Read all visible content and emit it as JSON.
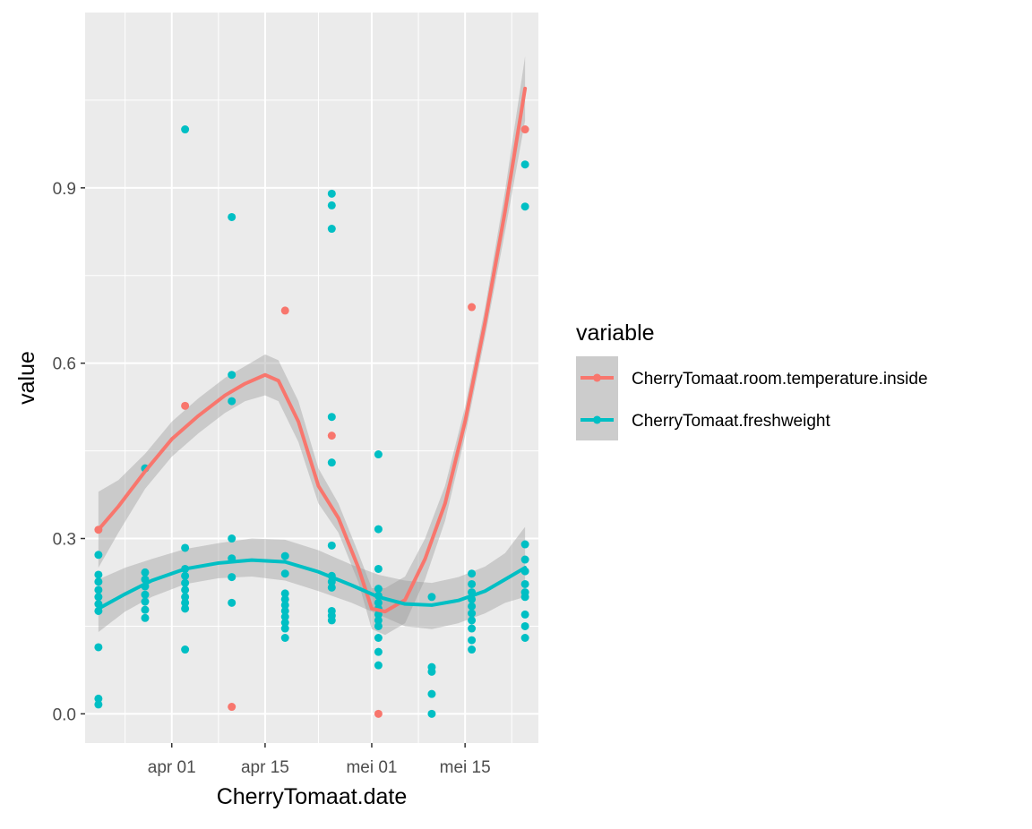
{
  "chart_data": {
    "type": "scatter",
    "xlabel": "CherryTomaat.date",
    "ylabel": "value",
    "xlim": [
      "2024-03-19",
      "2024-05-26"
    ],
    "ylim": [
      -0.05,
      1.2
    ],
    "x_ticks": [
      {
        "value": "2024-04-01",
        "label": "apr 01"
      },
      {
        "value": "2024-04-15",
        "label": "apr 15"
      },
      {
        "value": "2024-05-01",
        "label": "mei 01"
      },
      {
        "value": "2024-05-15",
        "label": "mei 15"
      }
    ],
    "y_ticks": [
      {
        "value": 0.0,
        "label": "0.0"
      },
      {
        "value": 0.3,
        "label": "0.3"
      },
      {
        "value": 0.6,
        "label": "0.6"
      },
      {
        "value": 0.9,
        "label": "0.9"
      }
    ],
    "grid": true,
    "legend": {
      "title": "variable",
      "placement": "right",
      "entries": [
        "CherryTomaat.room.temperature.inside",
        "CherryTomaat.freshweight"
      ]
    },
    "series": [
      {
        "name": "CherryTomaat.room.temperature.inside",
        "color": "#F8766D",
        "points": [
          {
            "x": "2024-03-21",
            "y": 0.315
          },
          {
            "x": "2024-03-28",
            "y": 0.42
          },
          {
            "x": "2024-04-03",
            "y": 0.527
          },
          {
            "x": "2024-04-10",
            "y": 0.012
          },
          {
            "x": "2024-04-18",
            "y": 0.69
          },
          {
            "x": "2024-04-25",
            "y": 0.476
          },
          {
            "x": "2024-05-02",
            "y": 0.0
          },
          {
            "x": "2024-05-16",
            "y": 0.696
          },
          {
            "x": "2024-05-24",
            "y": 1.0
          }
        ],
        "smooth": [
          {
            "x": "2024-03-21",
            "y": 0.315
          },
          {
            "x": "2024-03-24",
            "y": 0.355
          },
          {
            "x": "2024-03-28",
            "y": 0.415
          },
          {
            "x": "2024-04-01",
            "y": 0.47
          },
          {
            "x": "2024-04-05",
            "y": 0.51
          },
          {
            "x": "2024-04-09",
            "y": 0.545
          },
          {
            "x": "2024-04-12",
            "y": 0.565
          },
          {
            "x": "2024-04-15",
            "y": 0.58
          },
          {
            "x": "2024-04-17",
            "y": 0.57
          },
          {
            "x": "2024-04-20",
            "y": 0.5
          },
          {
            "x": "2024-04-23",
            "y": 0.39
          },
          {
            "x": "2024-04-26",
            "y": 0.335
          },
          {
            "x": "2024-04-29",
            "y": 0.25
          },
          {
            "x": "2024-05-01",
            "y": 0.18
          },
          {
            "x": "2024-05-03",
            "y": 0.175
          },
          {
            "x": "2024-05-06",
            "y": 0.195
          },
          {
            "x": "2024-05-09",
            "y": 0.265
          },
          {
            "x": "2024-05-12",
            "y": 0.36
          },
          {
            "x": "2024-05-15",
            "y": 0.5
          },
          {
            "x": "2024-05-18",
            "y": 0.67
          },
          {
            "x": "2024-05-21",
            "y": 0.86
          },
          {
            "x": "2024-05-24",
            "y": 1.07
          }
        ],
        "ci_lower": [
          0.25,
          0.31,
          0.385,
          0.44,
          0.48,
          0.515,
          0.535,
          0.545,
          0.535,
          0.465,
          0.36,
          0.31,
          0.225,
          0.145,
          0.135,
          0.155,
          0.23,
          0.33,
          0.475,
          0.645,
          0.825,
          1.015
        ],
        "ci_upper": [
          0.38,
          0.4,
          0.445,
          0.5,
          0.54,
          0.575,
          0.595,
          0.615,
          0.605,
          0.535,
          0.42,
          0.36,
          0.275,
          0.215,
          0.215,
          0.235,
          0.3,
          0.39,
          0.525,
          0.695,
          0.895,
          1.125
        ]
      },
      {
        "name": "CherryTomaat.freshweight",
        "color": "#00BFC4",
        "points": [
          {
            "x": "2024-03-21",
            "y": 0.272
          },
          {
            "x": "2024-03-21",
            "y": 0.238
          },
          {
            "x": "2024-03-21",
            "y": 0.226
          },
          {
            "x": "2024-03-21",
            "y": 0.212
          },
          {
            "x": "2024-03-21",
            "y": 0.2
          },
          {
            "x": "2024-03-21",
            "y": 0.188
          },
          {
            "x": "2024-03-21",
            "y": 0.176
          },
          {
            "x": "2024-03-21",
            "y": 0.114
          },
          {
            "x": "2024-03-21",
            "y": 0.026
          },
          {
            "x": "2024-03-21",
            "y": 0.016
          },
          {
            "x": "2024-03-28",
            "y": 0.242
          },
          {
            "x": "2024-03-28",
            "y": 0.23
          },
          {
            "x": "2024-03-28",
            "y": 0.218
          },
          {
            "x": "2024-03-28",
            "y": 0.204
          },
          {
            "x": "2024-03-28",
            "y": 0.192
          },
          {
            "x": "2024-03-28",
            "y": 0.178
          },
          {
            "x": "2024-03-28",
            "y": 0.164
          },
          {
            "x": "2024-03-28",
            "y": 0.42
          },
          {
            "x": "2024-04-03",
            "y": 1.0
          },
          {
            "x": "2024-04-03",
            "y": 0.284
          },
          {
            "x": "2024-04-03",
            "y": 0.248
          },
          {
            "x": "2024-04-03",
            "y": 0.236
          },
          {
            "x": "2024-04-03",
            "y": 0.224
          },
          {
            "x": "2024-04-03",
            "y": 0.212
          },
          {
            "x": "2024-04-03",
            "y": 0.2
          },
          {
            "x": "2024-04-03",
            "y": 0.19
          },
          {
            "x": "2024-04-03",
            "y": 0.18
          },
          {
            "x": "2024-04-03",
            "y": 0.11
          },
          {
            "x": "2024-04-10",
            "y": 0.85
          },
          {
            "x": "2024-04-10",
            "y": 0.58
          },
          {
            "x": "2024-04-10",
            "y": 0.535
          },
          {
            "x": "2024-04-10",
            "y": 0.3
          },
          {
            "x": "2024-04-10",
            "y": 0.266
          },
          {
            "x": "2024-04-10",
            "y": 0.234
          },
          {
            "x": "2024-04-10",
            "y": 0.19
          },
          {
            "x": "2024-04-18",
            "y": 0.27
          },
          {
            "x": "2024-04-18",
            "y": 0.24
          },
          {
            "x": "2024-04-18",
            "y": 0.206
          },
          {
            "x": "2024-04-18",
            "y": 0.196
          },
          {
            "x": "2024-04-18",
            "y": 0.186
          },
          {
            "x": "2024-04-18",
            "y": 0.176
          },
          {
            "x": "2024-04-18",
            "y": 0.166
          },
          {
            "x": "2024-04-18",
            "y": 0.156
          },
          {
            "x": "2024-04-18",
            "y": 0.146
          },
          {
            "x": "2024-04-18",
            "y": 0.13
          },
          {
            "x": "2024-04-25",
            "y": 0.89
          },
          {
            "x": "2024-04-25",
            "y": 0.87
          },
          {
            "x": "2024-04-25",
            "y": 0.83
          },
          {
            "x": "2024-04-25",
            "y": 0.508
          },
          {
            "x": "2024-04-25",
            "y": 0.43
          },
          {
            "x": "2024-04-25",
            "y": 0.288
          },
          {
            "x": "2024-04-25",
            "y": 0.236
          },
          {
            "x": "2024-04-25",
            "y": 0.226
          },
          {
            "x": "2024-04-25",
            "y": 0.216
          },
          {
            "x": "2024-04-25",
            "y": 0.176
          },
          {
            "x": "2024-04-25",
            "y": 0.168
          },
          {
            "x": "2024-04-25",
            "y": 0.16
          },
          {
            "x": "2024-05-02",
            "y": 0.444
          },
          {
            "x": "2024-05-02",
            "y": 0.316
          },
          {
            "x": "2024-05-02",
            "y": 0.248
          },
          {
            "x": "2024-05-02",
            "y": 0.214
          },
          {
            "x": "2024-05-02",
            "y": 0.202
          },
          {
            "x": "2024-05-02",
            "y": 0.19
          },
          {
            "x": "2024-05-02",
            "y": 0.18
          },
          {
            "x": "2024-05-02",
            "y": 0.17
          },
          {
            "x": "2024-05-02",
            "y": 0.16
          },
          {
            "x": "2024-05-02",
            "y": 0.15
          },
          {
            "x": "2024-05-02",
            "y": 0.13
          },
          {
            "x": "2024-05-02",
            "y": 0.106
          },
          {
            "x": "2024-05-02",
            "y": 0.083
          },
          {
            "x": "2024-05-10",
            "y": 0.2
          },
          {
            "x": "2024-05-10",
            "y": 0.08
          },
          {
            "x": "2024-05-10",
            "y": 0.072
          },
          {
            "x": "2024-05-10",
            "y": 0.034
          },
          {
            "x": "2024-05-10",
            "y": 0.0
          },
          {
            "x": "2024-05-16",
            "y": 0.24
          },
          {
            "x": "2024-05-16",
            "y": 0.222
          },
          {
            "x": "2024-05-16",
            "y": 0.208
          },
          {
            "x": "2024-05-16",
            "y": 0.196
          },
          {
            "x": "2024-05-16",
            "y": 0.184
          },
          {
            "x": "2024-05-16",
            "y": 0.172
          },
          {
            "x": "2024-05-16",
            "y": 0.16
          },
          {
            "x": "2024-05-16",
            "y": 0.146
          },
          {
            "x": "2024-05-16",
            "y": 0.126
          },
          {
            "x": "2024-05-16",
            "y": 0.11
          },
          {
            "x": "2024-05-24",
            "y": 0.94
          },
          {
            "x": "2024-05-24",
            "y": 0.868
          },
          {
            "x": "2024-05-24",
            "y": 0.29
          },
          {
            "x": "2024-05-24",
            "y": 0.264
          },
          {
            "x": "2024-05-24",
            "y": 0.244
          },
          {
            "x": "2024-05-24",
            "y": 0.222
          },
          {
            "x": "2024-05-24",
            "y": 0.208
          },
          {
            "x": "2024-05-24",
            "y": 0.2
          },
          {
            "x": "2024-05-24",
            "y": 0.17
          },
          {
            "x": "2024-05-24",
            "y": 0.15
          },
          {
            "x": "2024-05-24",
            "y": 0.13
          }
        ],
        "smooth": [
          {
            "x": "2024-03-21",
            "y": 0.18
          },
          {
            "x": "2024-03-25",
            "y": 0.205
          },
          {
            "x": "2024-03-29",
            "y": 0.228
          },
          {
            "x": "2024-04-03",
            "y": 0.248
          },
          {
            "x": "2024-04-08",
            "y": 0.258
          },
          {
            "x": "2024-04-13",
            "y": 0.263
          },
          {
            "x": "2024-04-18",
            "y": 0.26
          },
          {
            "x": "2024-04-23",
            "y": 0.243
          },
          {
            "x": "2024-04-28",
            "y": 0.22
          },
          {
            "x": "2024-05-02",
            "y": 0.2
          },
          {
            "x": "2024-05-06",
            "y": 0.188
          },
          {
            "x": "2024-05-10",
            "y": 0.186
          },
          {
            "x": "2024-05-14",
            "y": 0.194
          },
          {
            "x": "2024-05-18",
            "y": 0.21
          },
          {
            "x": "2024-05-21",
            "y": 0.23
          },
          {
            "x": "2024-05-24",
            "y": 0.25
          }
        ],
        "ci_lower": [
          0.14,
          0.175,
          0.2,
          0.222,
          0.232,
          0.235,
          0.228,
          0.21,
          0.19,
          0.17,
          0.15,
          0.145,
          0.155,
          0.172,
          0.19,
          0.2
        ],
        "ci_upper": [
          0.23,
          0.25,
          0.265,
          0.282,
          0.292,
          0.3,
          0.298,
          0.28,
          0.255,
          0.238,
          0.228,
          0.224,
          0.234,
          0.252,
          0.275,
          0.32
        ]
      }
    ]
  }
}
